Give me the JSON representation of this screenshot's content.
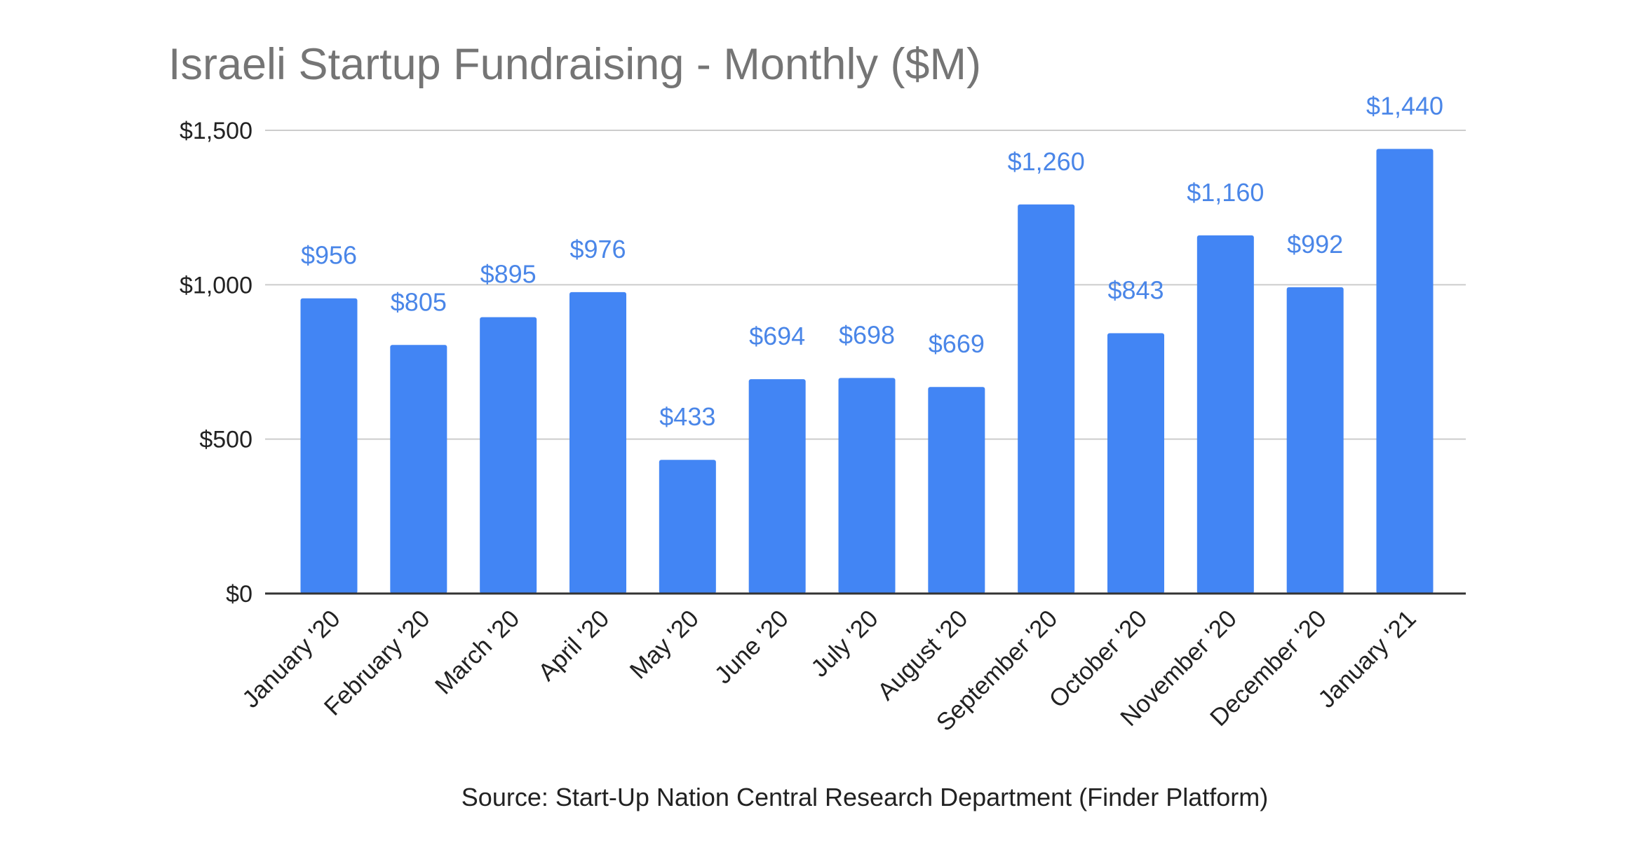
{
  "chart_data": {
    "type": "bar",
    "title": "Israeli Startup Fundraising - Monthly ($M)",
    "categories": [
      "January '20",
      "February '20",
      "March '20",
      "April '20",
      "May '20",
      "June '20",
      "July '20",
      "August '20",
      "September '20",
      "October '20",
      "November '20",
      "December '20",
      "January '21"
    ],
    "values": [
      956,
      805,
      895,
      976,
      433,
      694,
      698,
      669,
      1260,
      843,
      1160,
      992,
      1440
    ],
    "data_labels": [
      "$956",
      "$805",
      "$895",
      "$976",
      "$433",
      "$694",
      "$698",
      "$669",
      "$1,260",
      "$843",
      "$1,160",
      "$992",
      "$1,440"
    ],
    "y_ticks": [
      0,
      500,
      1000,
      1500
    ],
    "y_tick_labels": [
      "$0",
      "$500",
      "$1,000",
      "$1,500"
    ],
    "ylim": [
      0,
      1500
    ],
    "xlabel": "",
    "ylabel": "",
    "grid": true,
    "legend": "none",
    "bar_color": "#4285f4",
    "label_color": "#4a86e8",
    "source": "Source: Start-Up Nation Central Research Department (Finder Platform)"
  }
}
